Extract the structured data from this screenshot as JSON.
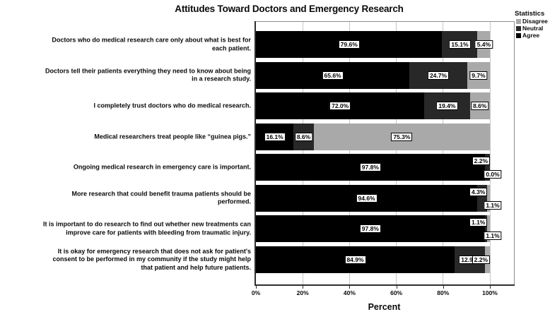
{
  "title": "Attitudes Toward Doctors and Emergency Research",
  "legend": {
    "title": "Statistics",
    "items": [
      {
        "label": "Disagree",
        "color": "#a9a9a9"
      },
      {
        "label": "Neutral",
        "color": "#282828"
      },
      {
        "label": "Agree",
        "color": "#000000"
      }
    ]
  },
  "chart_data": {
    "type": "bar",
    "orientation": "horizontal",
    "stacked": true,
    "title": "Attitudes Toward Doctors and Emergency Research",
    "xlabel": "Percent",
    "ylabel": "",
    "xlim": [
      0,
      110
    ],
    "grid": true,
    "legend_position": "top-right",
    "value_label_style": "white box, black border, one decimal, percent sign",
    "ticks": [
      {
        "label": "0%",
        "value": 0
      },
      {
        "label": "20%",
        "value": 20
      },
      {
        "label": "40%",
        "value": 40
      },
      {
        "label": "60%",
        "value": 60
      },
      {
        "label": "80%",
        "value": 80
      },
      {
        "label": "100%",
        "value": 100
      }
    ],
    "categories": [
      "Doctors who do medical research care only about what is best for\neach patient.",
      "Doctors tell their patients everything they need to know about being\nin a research study.",
      "I completely trust doctors who do medical research.",
      "Medical researchers treat people like “guinea pigs.”",
      "Ongoing medical research in emergency care is important.",
      "More research that could benefit trauma patients should be\nperformed.",
      "It is important to do research to find out whether new treatments can\nimprove care for patients with bleeding from traumatic injury.",
      "It is okay for emergency research that does not ask for patient's\nconsent to be performed in my community if the study might help\nthat patient and help future patients."
    ],
    "series": [
      {
        "name": "Agree",
        "color": "#000000",
        "values": [
          79.6,
          65.6,
          72.0,
          16.1,
          97.8,
          94.6,
          97.8,
          84.9
        ]
      },
      {
        "name": "Neutral",
        "color": "#282828",
        "values": [
          15.1,
          24.7,
          19.4,
          8.6,
          2.2,
          4.3,
          1.1,
          12.9
        ]
      },
      {
        "name": "Disagree",
        "color": "#a9a9a9",
        "values": [
          5.4,
          9.7,
          8.6,
          75.3,
          0.0,
          1.1,
          1.1,
          2.2
        ]
      }
    ]
  }
}
